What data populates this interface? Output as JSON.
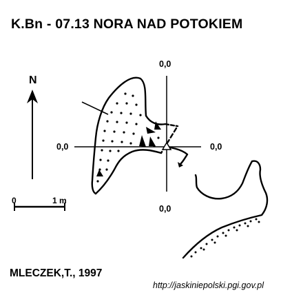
{
  "header": {
    "title": "K.Bn - 07.13  NORA NAD POTOKIEM"
  },
  "compass": {
    "north_label": "N"
  },
  "scale_bar": {
    "start_label": "0",
    "end_label": "1 m"
  },
  "section_labels": {
    "top": "0,0",
    "left": "0,0",
    "right": "0,0",
    "bottom": "0,0"
  },
  "footer": {
    "author": "MLECZEK,T., 1997",
    "url": "http://jaskiniepolski.pgi.gov.pl"
  }
}
